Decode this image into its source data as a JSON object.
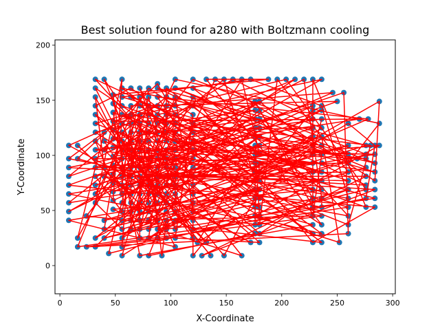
{
  "chart_data": {
    "type": "scatter",
    "title": "Best solution found for a280 with Boltzmann cooling",
    "xlabel": "X-Coordinate",
    "ylabel": "Y-Coordinate",
    "xlim": [
      -4.4,
      302.4
    ],
    "ylim": [
      -25.6,
      204.8
    ],
    "xticks": [
      0,
      50,
      100,
      150,
      200,
      250,
      300
    ],
    "yticks": [
      0,
      50,
      100,
      150,
      200
    ],
    "grid": false,
    "legend": "none",
    "series": [
      {
        "kind": "points",
        "color": "#1f77b4",
        "points": [
          [
            8,
            41
          ],
          [
            8,
            49
          ],
          [
            8,
            57
          ],
          [
            8,
            65
          ],
          [
            8,
            73
          ],
          [
            8,
            81
          ],
          [
            8,
            89
          ],
          [
            8,
            97
          ],
          [
            8,
            109
          ],
          [
            16,
            17
          ],
          [
            16,
            25
          ],
          [
            16,
            97
          ],
          [
            16,
            109
          ],
          [
            24,
            17
          ],
          [
            24,
            45
          ],
          [
            32,
            17
          ],
          [
            32,
            25
          ],
          [
            32,
            57
          ],
          [
            32,
            65
          ],
          [
            32,
            73
          ],
          [
            32,
            81
          ],
          [
            32,
            89
          ],
          [
            32,
            97
          ],
          [
            32,
            105
          ],
          [
            32,
            113
          ],
          [
            32,
            121
          ],
          [
            32,
            129
          ],
          [
            32,
            137
          ],
          [
            32,
            145
          ],
          [
            32,
            153
          ],
          [
            32,
            161
          ],
          [
            32,
            169
          ],
          [
            40,
            169
          ],
          [
            40,
            121
          ],
          [
            40,
            113
          ],
          [
            40,
            105
          ],
          [
            40,
            89
          ],
          [
            40,
            81
          ],
          [
            40,
            41
          ],
          [
            40,
            33
          ],
          [
            40,
            25
          ],
          [
            44,
            11
          ],
          [
            48,
            51
          ],
          [
            48,
            59
          ],
          [
            48,
            67
          ],
          [
            48,
            75
          ],
          [
            48,
            83
          ],
          [
            48,
            91
          ],
          [
            48,
            99
          ],
          [
            48,
            107
          ],
          [
            48,
            115
          ],
          [
            48,
            123
          ],
          [
            48,
            131
          ],
          [
            48,
            139
          ],
          [
            48,
            147
          ],
          [
            48,
            155
          ],
          [
            56,
            9
          ],
          [
            56,
            17
          ],
          [
            56,
            25
          ],
          [
            56,
            33
          ],
          [
            56,
            41
          ],
          [
            56,
            49
          ],
          [
            56,
            57
          ],
          [
            56,
            65
          ],
          [
            56,
            73
          ],
          [
            56,
            81
          ],
          [
            56,
            89
          ],
          [
            56,
            97
          ],
          [
            56,
            105
          ],
          [
            56,
            113
          ],
          [
            56,
            121
          ],
          [
            56,
            129
          ],
          [
            56,
            137
          ],
          [
            56,
            145
          ],
          [
            56,
            153
          ],
          [
            56,
            161
          ],
          [
            56,
            169
          ],
          [
            64,
            33
          ],
          [
            64,
            41
          ],
          [
            64,
            49
          ],
          [
            64,
            57
          ],
          [
            64,
            65
          ],
          [
            64,
            73
          ],
          [
            64,
            81
          ],
          [
            64,
            89
          ],
          [
            64,
            97
          ],
          [
            64,
            105
          ],
          [
            64,
            113
          ],
          [
            64,
            121
          ],
          [
            64,
            129
          ],
          [
            64,
            137
          ],
          [
            64,
            145
          ],
          [
            64,
            153
          ],
          [
            64,
            161
          ],
          [
            72,
            9
          ],
          [
            72,
            25
          ],
          [
            72,
            33
          ],
          [
            72,
            41
          ],
          [
            72,
            49
          ],
          [
            72,
            57
          ],
          [
            72,
            65
          ],
          [
            72,
            73
          ],
          [
            72,
            81
          ],
          [
            72,
            89
          ],
          [
            72,
            97
          ],
          [
            72,
            105
          ],
          [
            72,
            113
          ],
          [
            72,
            121
          ],
          [
            72,
            129
          ],
          [
            72,
            137
          ],
          [
            72,
            145
          ],
          [
            72,
            153
          ],
          [
            72,
            161
          ],
          [
            80,
            9
          ],
          [
            80,
            25
          ],
          [
            80,
            33
          ],
          [
            80,
            41
          ],
          [
            80,
            49
          ],
          [
            80,
            57
          ],
          [
            80,
            65
          ],
          [
            80,
            73
          ],
          [
            80,
            81
          ],
          [
            80,
            89
          ],
          [
            80,
            97
          ],
          [
            80,
            105
          ],
          [
            80,
            113
          ],
          [
            80,
            121
          ],
          [
            80,
            129
          ],
          [
            80,
            137
          ],
          [
            80,
            145
          ],
          [
            80,
            153
          ],
          [
            80,
            161
          ],
          [
            88,
            25
          ],
          [
            88,
            33
          ],
          [
            88,
            41
          ],
          [
            88,
            49
          ],
          [
            88,
            57
          ],
          [
            88,
            65
          ],
          [
            88,
            73
          ],
          [
            88,
            81
          ],
          [
            88,
            89
          ],
          [
            88,
            97
          ],
          [
            88,
            105
          ],
          [
            88,
            113
          ],
          [
            88,
            121
          ],
          [
            88,
            129
          ],
          [
            88,
            137
          ],
          [
            88,
            145
          ],
          [
            88,
            153
          ],
          [
            88,
            161
          ],
          [
            88,
            165
          ],
          [
            92,
            9
          ],
          [
            96,
            25
          ],
          [
            96,
            33
          ],
          [
            96,
            41
          ],
          [
            96,
            49
          ],
          [
            96,
            57
          ],
          [
            96,
            65
          ],
          [
            96,
            73
          ],
          [
            96,
            81
          ],
          [
            96,
            89
          ],
          [
            96,
            97
          ],
          [
            96,
            105
          ],
          [
            96,
            113
          ],
          [
            96,
            121
          ],
          [
            96,
            129
          ],
          [
            96,
            137
          ],
          [
            96,
            145
          ],
          [
            96,
            153
          ],
          [
            96,
            161
          ],
          [
            104,
            17
          ],
          [
            104,
            25
          ],
          [
            104,
            33
          ],
          [
            104,
            41
          ],
          [
            104,
            49
          ],
          [
            104,
            57
          ],
          [
            104,
            65
          ],
          [
            104,
            73
          ],
          [
            104,
            81
          ],
          [
            104,
            89
          ],
          [
            104,
            97
          ],
          [
            104,
            105
          ],
          [
            104,
            113
          ],
          [
            104,
            121
          ],
          [
            104,
            129
          ],
          [
            104,
            137
          ],
          [
            104,
            145
          ],
          [
            104,
            153
          ],
          [
            104,
            161
          ],
          [
            104,
            169
          ],
          [
            120,
            9
          ],
          [
            120,
            25
          ],
          [
            120,
            33
          ],
          [
            120,
            41
          ],
          [
            120,
            49
          ],
          [
            120,
            57
          ],
          [
            120,
            65
          ],
          [
            120,
            73
          ],
          [
            120,
            81
          ],
          [
            120,
            89
          ],
          [
            120,
            97
          ],
          [
            120,
            105
          ],
          [
            120,
            113
          ],
          [
            120,
            121
          ],
          [
            120,
            129
          ],
          [
            120,
            137
          ],
          [
            120,
            145
          ],
          [
            120,
            153
          ],
          [
            120,
            161
          ],
          [
            120,
            169
          ],
          [
            124,
            21
          ],
          [
            128,
            9
          ],
          [
            132,
            21
          ],
          [
            132,
            169
          ],
          [
            136,
            9
          ],
          [
            140,
            169
          ],
          [
            148,
            9
          ],
          [
            148,
            169
          ],
          [
            156,
            169
          ],
          [
            164,
            9
          ],
          [
            164,
            169
          ],
          [
            172,
            21
          ],
          [
            172,
            169
          ],
          [
            176,
            29
          ],
          [
            176,
            37
          ],
          [
            176,
            45
          ],
          [
            176,
            53
          ],
          [
            176,
            61
          ],
          [
            176,
            69
          ],
          [
            176,
            77
          ],
          [
            176,
            85
          ],
          [
            176,
            93
          ],
          [
            176,
            101
          ],
          [
            176,
            109
          ],
          [
            176,
            117
          ],
          [
            176,
            125
          ],
          [
            176,
            133
          ],
          [
            176,
            141
          ],
          [
            176,
            149
          ],
          [
            180,
            21
          ],
          [
            180,
            29
          ],
          [
            180,
            37
          ],
          [
            180,
            45
          ],
          [
            180,
            53
          ],
          [
            180,
            61
          ],
          [
            180,
            69
          ],
          [
            180,
            77
          ],
          [
            180,
            85
          ],
          [
            180,
            93
          ],
          [
            180,
            101
          ],
          [
            180,
            109
          ],
          [
            180,
            117
          ],
          [
            180,
            125
          ],
          [
            180,
            133
          ],
          [
            180,
            141
          ],
          [
            180,
            149
          ],
          [
            188,
            169
          ],
          [
            196,
            169
          ],
          [
            204,
            169
          ],
          [
            212,
            169
          ],
          [
            220,
            169
          ],
          [
            228,
            169
          ],
          [
            236,
            169
          ],
          [
            228,
            21
          ],
          [
            228,
            29
          ],
          [
            228,
            37
          ],
          [
            228,
            45
          ],
          [
            228,
            53
          ],
          [
            228,
            61
          ],
          [
            228,
            69
          ],
          [
            228,
            77
          ],
          [
            228,
            85
          ],
          [
            228,
            93
          ],
          [
            228,
            101
          ],
          [
            228,
            109
          ],
          [
            228,
            117
          ],
          [
            228,
            125
          ],
          [
            228,
            133
          ],
          [
            228,
            141
          ],
          [
            228,
            145
          ],
          [
            236,
            21
          ],
          [
            236,
            29
          ],
          [
            236,
            37
          ],
          [
            236,
            45
          ],
          [
            236,
            53
          ],
          [
            236,
            61
          ],
          [
            236,
            69
          ],
          [
            236,
            77
          ],
          [
            236,
            85
          ],
          [
            236,
            93
          ],
          [
            236,
            101
          ],
          [
            236,
            109
          ],
          [
            236,
            117
          ],
          [
            236,
            125
          ],
          [
            236,
            133
          ],
          [
            236,
            141
          ],
          [
            236,
            145
          ],
          [
            246,
            157
          ],
          [
            250,
            149
          ],
          [
            252,
            21
          ],
          [
            256,
            157
          ],
          [
            260,
            29
          ],
          [
            260,
            37
          ],
          [
            260,
            45
          ],
          [
            260,
            53
          ],
          [
            260,
            61
          ],
          [
            260,
            69
          ],
          [
            260,
            77
          ],
          [
            260,
            85
          ],
          [
            260,
            93
          ],
          [
            260,
            101
          ],
          [
            260,
            109
          ],
          [
            260,
            129
          ],
          [
            268,
            97
          ],
          [
            270,
            133
          ],
          [
            276,
            81
          ],
          [
            276,
            89
          ],
          [
            276,
            97
          ],
          [
            276,
            101
          ],
          [
            276,
            109
          ],
          [
            276,
            53
          ],
          [
            276,
            61
          ],
          [
            276,
            69
          ],
          [
            276,
            73
          ],
          [
            278,
            133
          ],
          [
            280,
            109
          ],
          [
            284,
            53
          ],
          [
            284,
            61
          ],
          [
            284,
            69
          ],
          [
            284,
            77
          ],
          [
            284,
            85
          ],
          [
            284,
            93
          ],
          [
            284,
            101
          ],
          [
            284,
            109
          ],
          [
            288,
            109
          ],
          [
            288,
            129
          ],
          [
            288,
            149
          ]
        ]
      },
      {
        "kind": "route",
        "color": "#ff0000",
        "order_seed": 280
      }
    ]
  }
}
